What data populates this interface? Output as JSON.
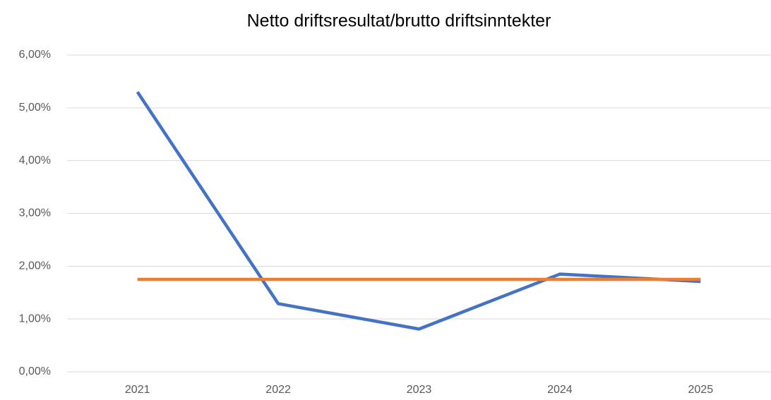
{
  "chart_data": {
    "type": "line",
    "title": "Netto driftsresultat/brutto driftsinntekter",
    "categories": [
      "2021",
      "2022",
      "2023",
      "2024",
      "2025"
    ],
    "series": [
      {
        "color": "#4472c4",
        "values": [
          5.3,
          1.29,
          0.81,
          1.85,
          1.71
        ]
      },
      {
        "color": "#ed7d31",
        "values": [
          1.75,
          1.75,
          1.75,
          1.75,
          1.75
        ]
      }
    ],
    "ylim": [
      0,
      6
    ],
    "yticks": [
      {
        "value": 0,
        "label": "0,00%"
      },
      {
        "value": 1,
        "label": "1,00%"
      },
      {
        "value": 2,
        "label": "2,00%"
      },
      {
        "value": 3,
        "label": "3,00%"
      },
      {
        "value": 4,
        "label": "4,00%"
      },
      {
        "value": 5,
        "label": "5,00%"
      },
      {
        "value": 6,
        "label": "6,00%"
      }
    ],
    "grid": true
  }
}
